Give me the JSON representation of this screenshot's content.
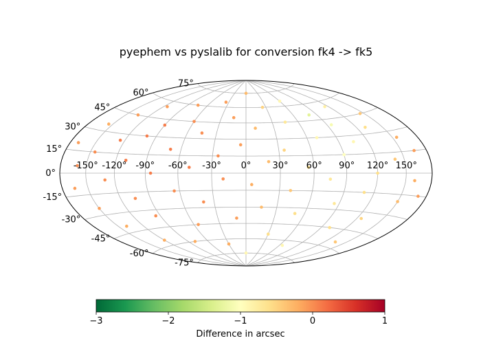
{
  "chart_data": {
    "type": "scatter",
    "projection": "hammer",
    "title": "pyephem vs pyslalib for conversion fk4 -> fk5",
    "lon_ticks": [
      -150,
      -120,
      -90,
      -60,
      -30,
      0,
      30,
      60,
      90,
      120,
      150
    ],
    "lat_ticks": [
      -75,
      -60,
      -45,
      -30,
      -15,
      0,
      15,
      30,
      45,
      60,
      75
    ],
    "lon_tick_labels": [
      "-150°",
      "-120°",
      "-90°",
      "-60°",
      "-30°",
      "0°",
      "30°",
      "60°",
      "90°",
      "120°",
      "150°"
    ],
    "lat_tick_labels": [
      "-75°",
      "-60°",
      "-45°",
      "-30°",
      "-15°",
      "0°",
      "15°",
      "30°",
      "45°",
      "60°",
      "75°"
    ],
    "grid": true,
    "colorbar": {
      "label": "Difference in arcsec",
      "colormap": "RdYlGn_r",
      "vmin": -3,
      "vmax": 1,
      "ticks": [
        -3,
        -2,
        -1,
        0,
        1
      ],
      "tick_labels": [
        "−3",
        "−2",
        "−1",
        "0",
        "1"
      ],
      "orientation": "horizontal"
    },
    "points": [
      {
        "lon": -170,
        "lat": 20,
        "v": -0.1
      },
      {
        "lon": -165,
        "lat": -10,
        "v": -0.1
      },
      {
        "lon": -160,
        "lat": 5,
        "v": 0.0
      },
      {
        "lon": -155,
        "lat": 35,
        "v": -0.2
      },
      {
        "lon": -150,
        "lat": -25,
        "v": -0.1
      },
      {
        "lon": -145,
        "lat": 15,
        "v": 0.0
      },
      {
        "lon": -140,
        "lat": -40,
        "v": -0.2
      },
      {
        "lon": -135,
        "lat": 45,
        "v": -0.1
      },
      {
        "lon": -130,
        "lat": -5,
        "v": 0.0
      },
      {
        "lon": -125,
        "lat": 25,
        "v": 0.1
      },
      {
        "lon": -120,
        "lat": -55,
        "v": -0.2
      },
      {
        "lon": -115,
        "lat": 55,
        "v": -0.1
      },
      {
        "lon": -110,
        "lat": 10,
        "v": 0.1
      },
      {
        "lon": -105,
        "lat": -20,
        "v": 0.0
      },
      {
        "lon": -100,
        "lat": 30,
        "v": 0.1
      },
      {
        "lon": -95,
        "lat": -35,
        "v": 0.0
      },
      {
        "lon": -90,
        "lat": 40,
        "v": 0.1
      },
      {
        "lon": -85,
        "lat": 0,
        "v": 0.1
      },
      {
        "lon": -80,
        "lat": -60,
        "v": -0.2
      },
      {
        "lon": -75,
        "lat": 60,
        "v": -0.1
      },
      {
        "lon": -70,
        "lat": 20,
        "v": 0.1
      },
      {
        "lon": -65,
        "lat": -15,
        "v": 0.0
      },
      {
        "lon": -60,
        "lat": 45,
        "v": 0.0
      },
      {
        "lon": -55,
        "lat": -45,
        "v": -0.1
      },
      {
        "lon": -50,
        "lat": 5,
        "v": 0.1
      },
      {
        "lon": -45,
        "lat": 35,
        "v": 0.0
      },
      {
        "lon": -40,
        "lat": -25,
        "v": 0.0
      },
      {
        "lon": -35,
        "lat": 65,
        "v": -0.1
      },
      {
        "lon": -30,
        "lat": -65,
        "v": -0.2
      },
      {
        "lon": -25,
        "lat": 15,
        "v": 0.0
      },
      {
        "lon": -20,
        "lat": -5,
        "v": 0.0
      },
      {
        "lon": -15,
        "lat": 50,
        "v": -0.1
      },
      {
        "lon": -10,
        "lat": -40,
        "v": -0.1
      },
      {
        "lon": -5,
        "lat": 25,
        "v": -0.1
      },
      {
        "lon": 0,
        "lat": 75,
        "v": -0.3
      },
      {
        "lon": 0,
        "lat": -75,
        "v": -0.9
      },
      {
        "lon": 5,
        "lat": -10,
        "v": -0.2
      },
      {
        "lon": 10,
        "lat": 40,
        "v": -0.3
      },
      {
        "lon": 15,
        "lat": -30,
        "v": -0.3
      },
      {
        "lon": 20,
        "lat": 10,
        "v": -0.3
      },
      {
        "lon": 25,
        "lat": 60,
        "v": -0.5
      },
      {
        "lon": 30,
        "lat": -55,
        "v": -0.6
      },
      {
        "lon": 35,
        "lat": 20,
        "v": -0.5
      },
      {
        "lon": 40,
        "lat": -15,
        "v": -0.4
      },
      {
        "lon": 45,
        "lat": 45,
        "v": -0.7
      },
      {
        "lon": 50,
        "lat": -35,
        "v": -0.6
      },
      {
        "lon": 55,
        "lat": 5,
        "v": -0.6
      },
      {
        "lon": 60,
        "lat": 65,
        "v": -0.9
      },
      {
        "lon": 65,
        "lat": -65,
        "v": -0.9
      },
      {
        "lon": 70,
        "lat": 30,
        "v": -0.9
      },
      {
        "lon": 75,
        "lat": -5,
        "v": -0.7
      },
      {
        "lon": 80,
        "lat": 50,
        "v": -1.3
      },
      {
        "lon": 85,
        "lat": -25,
        "v": -0.7
      },
      {
        "lon": 90,
        "lat": 15,
        "v": -1.0
      },
      {
        "lon": 95,
        "lat": 40,
        "v": -1.1
      },
      {
        "lon": 100,
        "lat": -45,
        "v": -0.6
      },
      {
        "lon": 105,
        "lat": 25,
        "v": -0.9
      },
      {
        "lon": 110,
        "lat": -15,
        "v": -0.6
      },
      {
        "lon": 115,
        "lat": 55,
        "v": -0.8
      },
      {
        "lon": 120,
        "lat": 0,
        "v": -0.6
      },
      {
        "lon": 125,
        "lat": -35,
        "v": -0.5
      },
      {
        "lon": 130,
        "lat": 35,
        "v": -0.6
      },
      {
        "lon": 135,
        "lat": -55,
        "v": -0.4
      },
      {
        "lon": 140,
        "lat": 10,
        "v": -0.4
      },
      {
        "lon": 145,
        "lat": 45,
        "v": -0.4
      },
      {
        "lon": 150,
        "lat": -20,
        "v": -0.3
      },
      {
        "lon": 155,
        "lat": 25,
        "v": -0.2
      },
      {
        "lon": 160,
        "lat": -5,
        "v": -0.2
      },
      {
        "lon": 165,
        "lat": 15,
        "v": -0.1
      },
      {
        "lon": 170,
        "lat": -15,
        "v": -0.1
      }
    ]
  }
}
